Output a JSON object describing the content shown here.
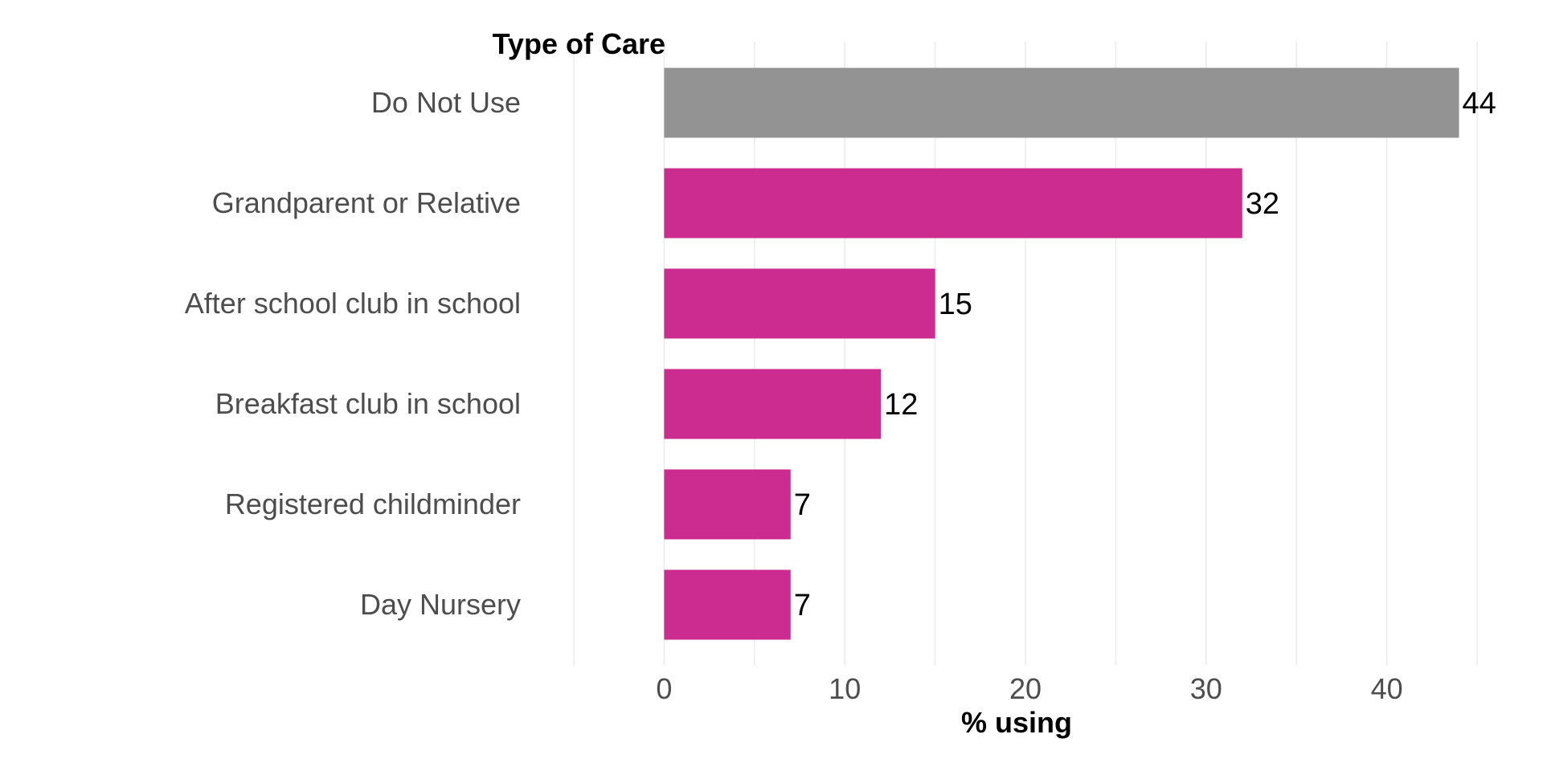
{
  "chart_data": {
    "type": "bar",
    "orientation": "horizontal",
    "ylabel": "Type of Care",
    "xlabel": "% using",
    "categories": [
      "Do Not Use",
      "Grandparent or Relative",
      "After school club in school",
      "Breakfast club in school",
      "Registered childminder",
      "Day Nursery"
    ],
    "values": [
      44,
      32,
      15,
      12,
      7,
      7
    ],
    "value_labels": [
      "44",
      "32",
      "15",
      "12",
      "7",
      "7"
    ],
    "bar_colors": [
      "#939393",
      "#cc2b8f",
      "#cc2b8f",
      "#cc2b8f",
      "#cc2b8f",
      "#cc2b8f"
    ],
    "xlim": [
      -5,
      45
    ],
    "xticks": [
      0,
      10,
      20,
      30,
      40
    ],
    "xtick_labels": [
      "0",
      "10",
      "20",
      "30",
      "40"
    ],
    "grid": true,
    "legend": false
  }
}
